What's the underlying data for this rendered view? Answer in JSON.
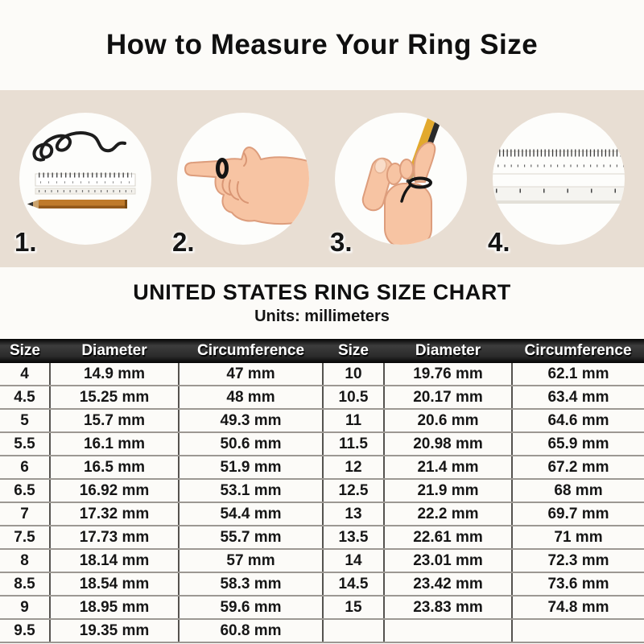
{
  "title": "How to Measure Your Ring Size",
  "steps": [
    {
      "number": "1.",
      "icon": "string-ruler-pencil-icon"
    },
    {
      "number": "2.",
      "icon": "hand-pointing-with-ring-icon"
    },
    {
      "number": "3.",
      "icon": "hand-string-pencil-mark-icon"
    },
    {
      "number": "4.",
      "icon": "ruler-and-tape-icon"
    }
  ],
  "chart": {
    "heading": "UNITED STATES RING SIZE CHART",
    "subheading": "Units: millimeters"
  },
  "chart_data": {
    "type": "table",
    "columns": [
      "Size",
      "Diameter",
      "Circumference",
      "Size",
      "Diameter",
      "Circumference"
    ],
    "rows": [
      [
        "4",
        "14.9 mm",
        "47 mm",
        "10",
        "19.76 mm",
        "62.1 mm"
      ],
      [
        "4.5",
        "15.25 mm",
        "48 mm",
        "10.5",
        "20.17 mm",
        "63.4 mm"
      ],
      [
        "5",
        "15.7 mm",
        "49.3 mm",
        "11",
        "20.6 mm",
        "64.6 mm"
      ],
      [
        "5.5",
        "16.1 mm",
        "50.6 mm",
        "11.5",
        "20.98 mm",
        "65.9 mm"
      ],
      [
        "6",
        "16.5 mm",
        "51.9 mm",
        "12",
        "21.4 mm",
        "67.2 mm"
      ],
      [
        "6.5",
        "16.92 mm",
        "53.1 mm",
        "12.5",
        "21.9 mm",
        "68 mm"
      ],
      [
        "7",
        "17.32 mm",
        "54.4 mm",
        "13",
        "22.2 mm",
        "69.7 mm"
      ],
      [
        "7.5",
        "17.73 mm",
        "55.7 mm",
        "13.5",
        "22.61 mm",
        "71 mm"
      ],
      [
        "8",
        "18.14 mm",
        "57 mm",
        "14",
        "23.01 mm",
        "72.3 mm"
      ],
      [
        "8.5",
        "18.54 mm",
        "58.3 mm",
        "14.5",
        "23.42 mm",
        "73.6 mm"
      ],
      [
        "9",
        "18.95 mm",
        "59.6 mm",
        "15",
        "23.83 mm",
        "74.8 mm"
      ],
      [
        "9.5",
        "19.35 mm",
        "60.8 mm",
        "",
        "",
        ""
      ]
    ]
  },
  "colors": {
    "band_background": "#e8ded3",
    "table_header_background": "#1c1c1c",
    "table_header_text": "#ffffff",
    "row_line": "#9c9893",
    "column_line": "#55534f"
  }
}
